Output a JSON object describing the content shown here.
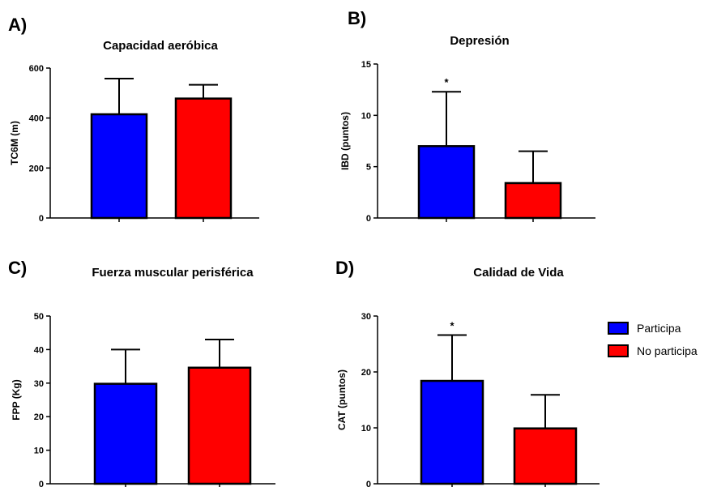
{
  "legend": [
    {
      "label": "Participa",
      "color": "#0000ff"
    },
    {
      "label": "No participa",
      "color": "#ff0000"
    }
  ],
  "chart_data": [
    {
      "panel": "A)",
      "type": "bar",
      "title": "Capacidad aeróbica",
      "ylabel": "TC6M (m)",
      "ylim": [
        0,
        600
      ],
      "yticks": [
        0,
        200,
        400,
        600
      ],
      "categories": [
        "Participa",
        "No participa"
      ],
      "values": [
        415,
        478
      ],
      "errors": [
        143,
        55
      ],
      "significance": [
        "",
        ""
      ]
    },
    {
      "panel": "B)",
      "type": "bar",
      "title": "Depresión",
      "ylabel": "IBD (puntos)",
      "ylim": [
        0,
        15
      ],
      "yticks": [
        0,
        5,
        10,
        15
      ],
      "categories": [
        "Participa",
        "No participa"
      ],
      "values": [
        7.0,
        3.4
      ],
      "errors": [
        5.3,
        3.1
      ],
      "significance": [
        "*",
        ""
      ]
    },
    {
      "panel": "C)",
      "type": "bar",
      "title": "Fuerza muscular perisférica",
      "ylabel": "FPP (Kg)",
      "ylim": [
        0,
        50
      ],
      "yticks": [
        0,
        10,
        20,
        30,
        40,
        50
      ],
      "categories": [
        "Participa",
        "No participa"
      ],
      "values": [
        29.8,
        34.6
      ],
      "errors": [
        10.2,
        8.4
      ],
      "significance": [
        "",
        ""
      ]
    },
    {
      "panel": "D)",
      "type": "bar",
      "title": "Calidad de Vida",
      "ylabel": "CAT (puntos)",
      "ylim": [
        0,
        30
      ],
      "yticks": [
        0,
        10,
        20,
        30
      ],
      "categories": [
        "Participa",
        "No participa"
      ],
      "values": [
        18.4,
        9.9
      ],
      "errors": [
        8.2,
        6.0
      ],
      "significance": [
        "*",
        ""
      ]
    }
  ]
}
